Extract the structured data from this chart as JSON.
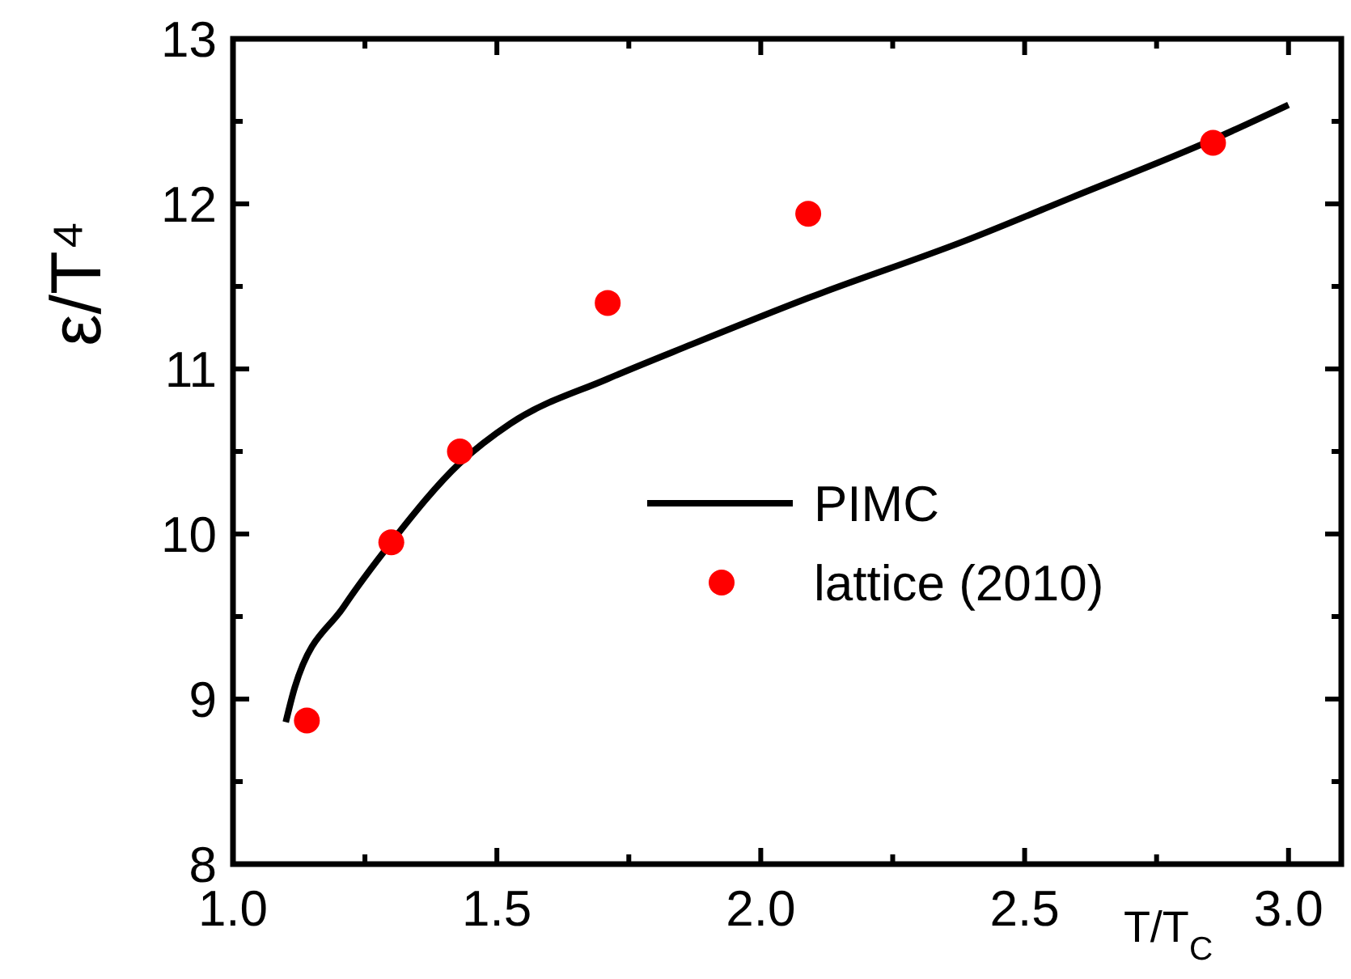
{
  "chart_data": {
    "type": "line",
    "xlabel": "T/T$_{C}$",
    "ylabel": "ε/T⁴",
    "xlim": [
      1.0,
      3.1
    ],
    "ylim": [
      8,
      13
    ],
    "xticks": [
      {
        "value": 1.0,
        "label": "1.0"
      },
      {
        "value": 1.25,
        "label": null
      },
      {
        "value": 1.5,
        "label": "1.5"
      },
      {
        "value": 1.75,
        "label": null
      },
      {
        "value": 2.0,
        "label": "2.0"
      },
      {
        "value": 2.25,
        "label": null
      },
      {
        "value": 2.5,
        "label": "2.5"
      },
      {
        "value": 2.75,
        "label": null
      },
      {
        "value": 3.0,
        "label": "3.0"
      }
    ],
    "yticks": [
      8,
      {
        "value": 8.5,
        "label": null
      },
      9,
      {
        "value": 9.5,
        "label": null
      },
      10,
      {
        "value": 10.5,
        "label": null
      },
      11,
      {
        "value": 11.5,
        "label": null
      },
      12,
      {
        "value": 12.5,
        "label": null
      },
      13
    ],
    "legend": "right",
    "grid": false,
    "series": [
      {
        "name": "PIMC",
        "color": "#000000",
        "marker": "none",
        "line_style": "solid",
        "x": [
          1.1,
          1.117,
          1.21,
          1.3,
          1.43,
          1.526,
          1.71,
          1.87,
          2.09,
          2.39,
          2.59,
          2.857,
          3.0
        ],
        "values": [
          8.86,
          9.07,
          9.56,
          9.95,
          10.43,
          10.67,
          10.94,
          11.15,
          11.43,
          11.78,
          12.04,
          12.39,
          12.6
        ]
      },
      {
        "name": "lattice (2010)",
        "type": "scatter",
        "color": "#ff0000",
        "marker": "circle",
        "x": [
          1.14,
          1.3,
          1.43,
          1.71,
          2.09,
          2.857
        ],
        "values": [
          8.87,
          9.95,
          10.5,
          11.4,
          11.94,
          12.37
        ]
      }
    ]
  }
}
